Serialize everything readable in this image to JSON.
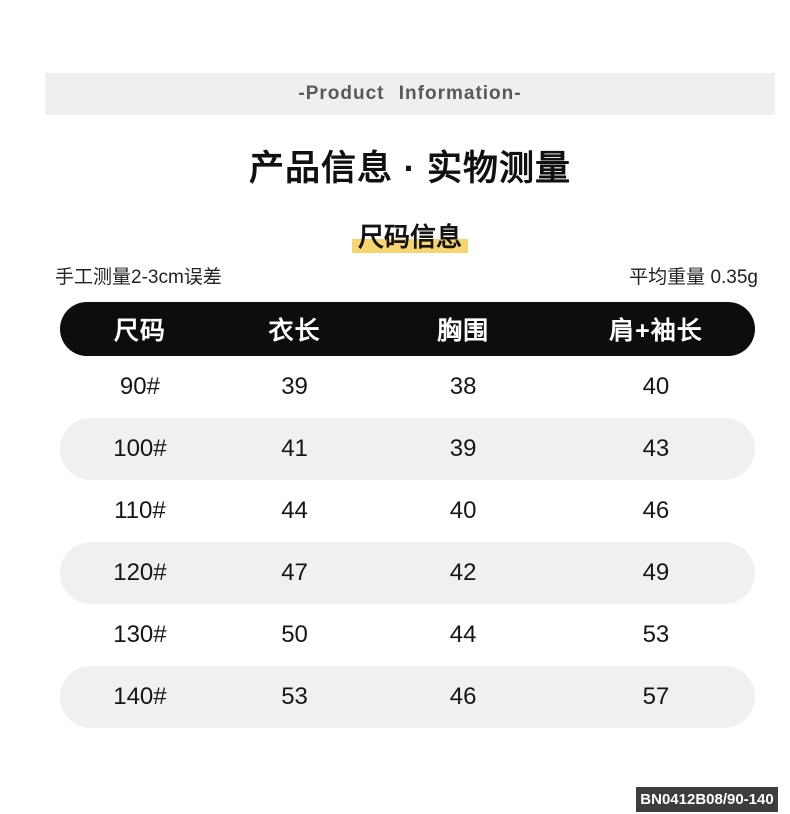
{
  "colors": {
    "banner_bg": "#efefef",
    "banner_text": "#595959",
    "highlight": "#f8d56e",
    "header_bg": "#0d0d0d",
    "header_text": "#ffffff",
    "row_alt_bg": "#f0f0f0",
    "badge_bg": "#3d3d3d",
    "badge_text": "#ffffff",
    "text": "#1a1a1a"
  },
  "banner": {
    "label": "-Product Information-"
  },
  "title": "产品信息 · 实物测量",
  "section": {
    "label": "尺码信息"
  },
  "notes": {
    "left": "手工测量2-3cm误差",
    "right": "平均重量 0.35g"
  },
  "table": {
    "headers": [
      "尺码",
      "衣长",
      "胸围",
      "肩+袖长"
    ],
    "rows": [
      [
        "90#",
        "39",
        "38",
        "40"
      ],
      [
        "100#",
        "41",
        "39",
        "43"
      ],
      [
        "110#",
        "44",
        "40",
        "46"
      ],
      [
        "120#",
        "47",
        "42",
        "49"
      ],
      [
        "130#",
        "50",
        "44",
        "53"
      ],
      [
        "140#",
        "53",
        "46",
        "57"
      ]
    ]
  },
  "badge": {
    "label": "BN0412B08/90-140"
  }
}
